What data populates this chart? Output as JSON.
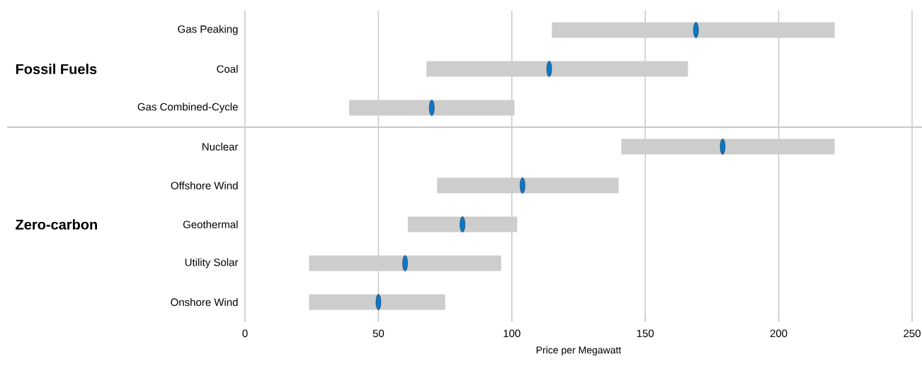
{
  "chart_data": [
    {
      "type": "bar",
      "orientation": "horizontal",
      "ylabel": "Fossil Fuels",
      "categories": [
        "Gas Peaking",
        "Coal",
        "Gas Combined-Cycle"
      ],
      "series": [
        {
          "color": "#cdcdcd",
          "base": [
            115,
            68,
            39
          ],
          "values": [
            106,
            98,
            62
          ]
        },
        {
          "type": "scatter",
          "color": "#0a78c8",
          "x": [
            "Gas Peaking",
            "Coal",
            "Gas Combined-Cycle"
          ],
          "values": [
            169,
            114,
            70
          ]
        }
      ],
      "xlim": [
        0,
        250
      ],
      "xticks": [
        0,
        50,
        100,
        150,
        200,
        250
      ],
      "grid": "x",
      "tick_labels": "y"
    },
    {
      "type": "bar",
      "orientation": "horizontal",
      "ylabel": "Zero-carbon",
      "xlabel": "Price per Megawatt",
      "categories": [
        "Nuclear",
        "Offshore Wind",
        "Geothermal",
        "Utility Solar",
        "Onshore Wind"
      ],
      "series": [
        {
          "color": "#cdcdcd",
          "base": [
            141,
            72,
            61,
            24,
            24
          ],
          "values": [
            80,
            68,
            41,
            72,
            51
          ]
        },
        {
          "type": "scatter",
          "color": "#0a78c8",
          "x": [
            "Nuclear",
            "Offshore Wind",
            "Geothermal",
            "Utility Solar",
            "Onshore Wind"
          ],
          "values": [
            179,
            104,
            81.5,
            60,
            50
          ]
        }
      ],
      "xlim": [
        0,
        250
      ],
      "xticks": [
        0,
        50,
        100,
        150,
        200,
        250
      ],
      "grid": "x"
    }
  ]
}
